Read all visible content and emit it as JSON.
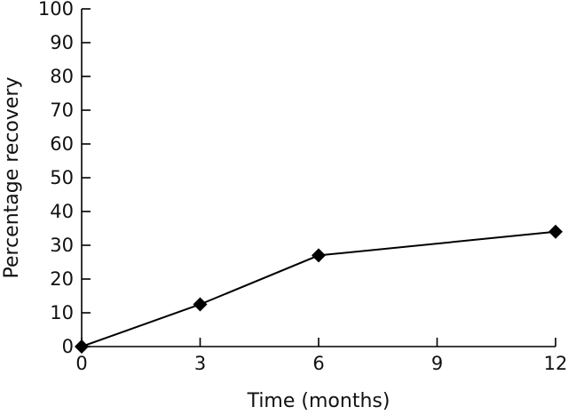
{
  "chart_data": {
    "type": "line",
    "title": "",
    "xlabel": "Time (months)",
    "ylabel": "Percentage recovery",
    "xlim": [
      0,
      12
    ],
    "ylim": [
      0,
      100
    ],
    "xticks": [
      0,
      3,
      6,
      9,
      12
    ],
    "yticks": [
      0,
      10,
      20,
      30,
      40,
      50,
      60,
      70,
      80,
      90,
      100
    ],
    "grid": false,
    "marker": "diamond",
    "series": [
      {
        "x": [
          0,
          3,
          6,
          12
        ],
        "y": [
          0,
          12.5,
          27,
          34
        ]
      }
    ]
  },
  "colors": {
    "line": "#000000",
    "marker": "#000000",
    "text": "#111111",
    "background": "#ffffff"
  }
}
